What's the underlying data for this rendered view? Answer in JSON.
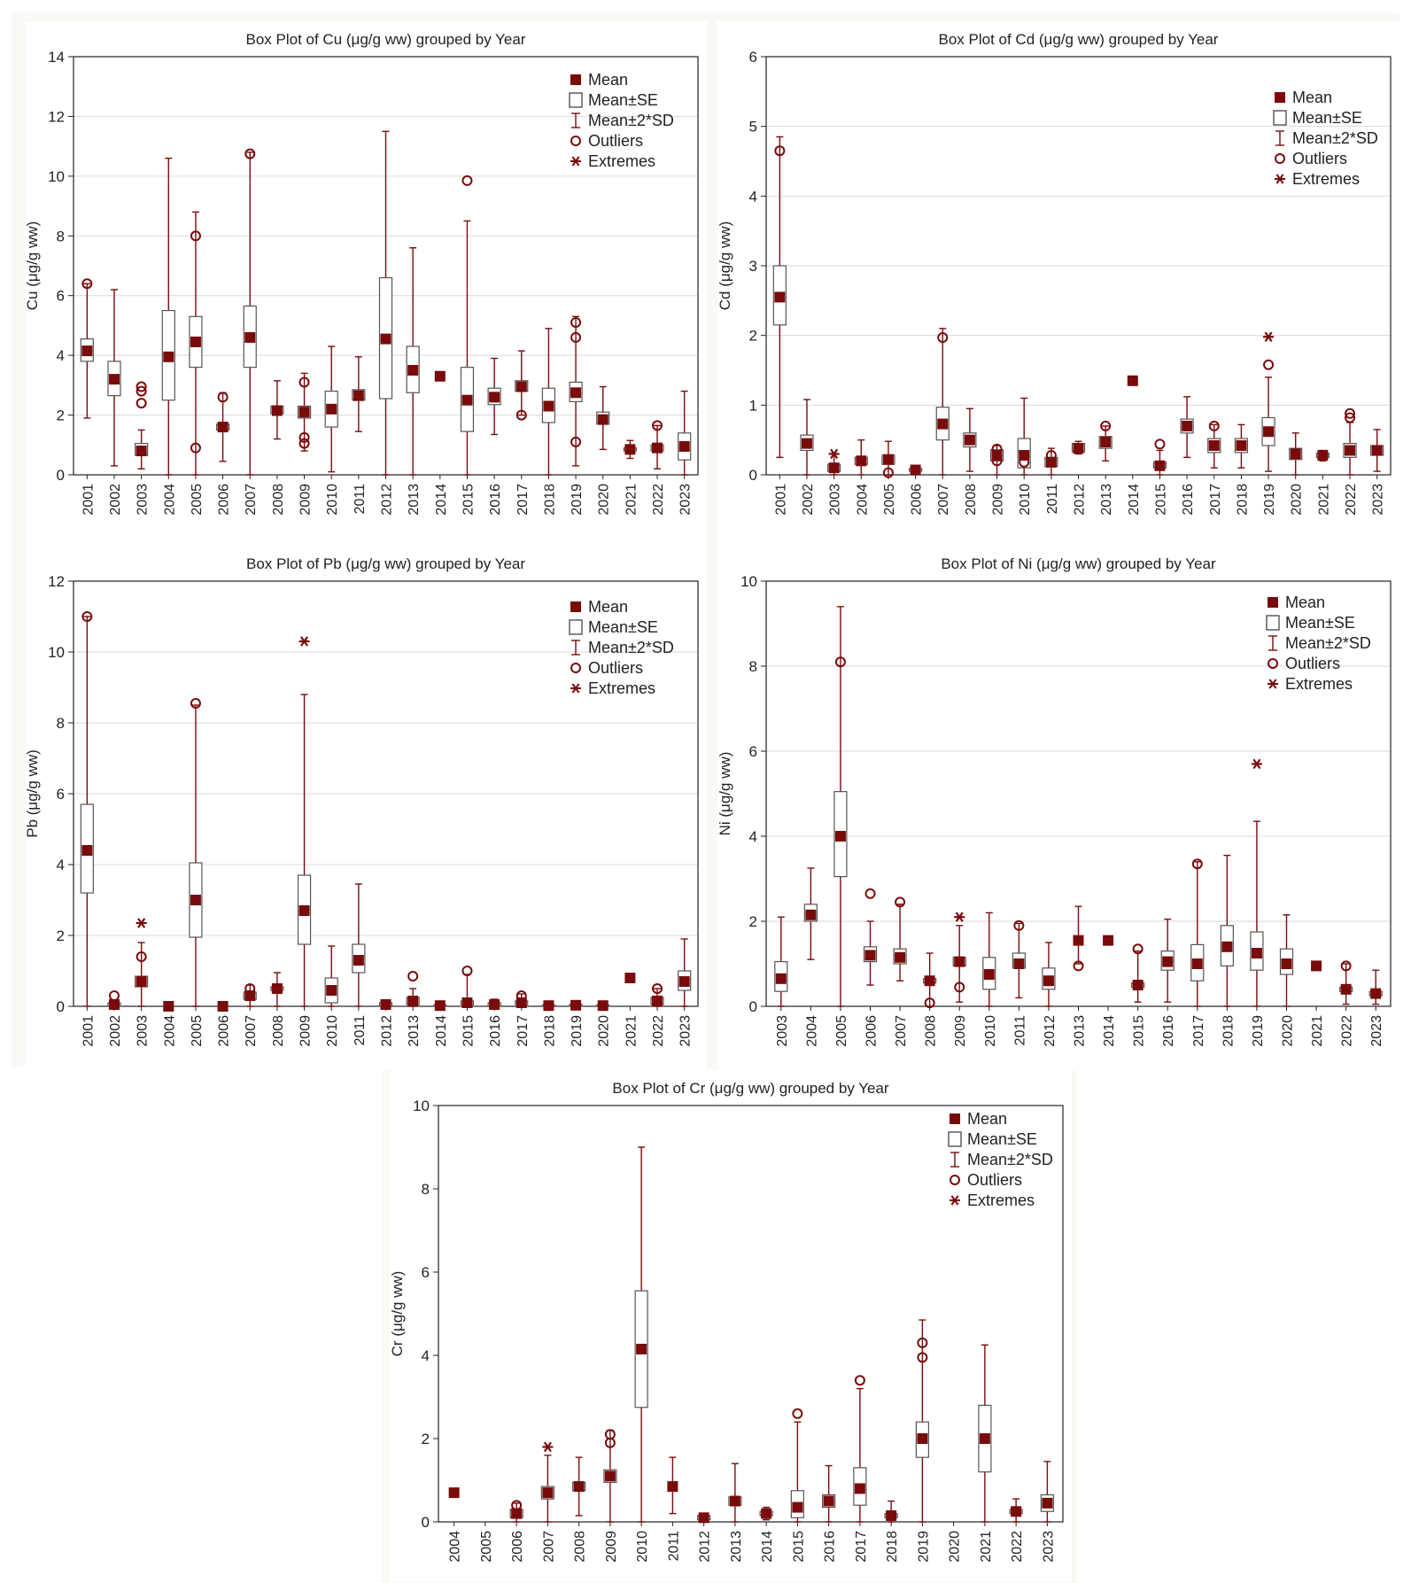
{
  "colors": {
    "mark": "#7a0b0b",
    "grid": "#d9d9d9",
    "axis": "#222222",
    "text": "#222222"
  },
  "legend_labels": [
    "Mean",
    "Mean±SE",
    "Mean±2*SD",
    "Outliers",
    "Extremes"
  ],
  "chart_data": [
    {
      "id": "cu",
      "type": "box",
      "title": "Box Plot of Cu (μg/g ww) grouped by  Year",
      "ylabel": "Cu (μg/g ww)",
      "ylim": [
        0,
        14
      ],
      "yticks": [
        0,
        2,
        4,
        6,
        8,
        10,
        12,
        14
      ],
      "grid": true,
      "legend": "top-right",
      "categories": [
        "2001",
        "2002",
        "2003",
        "2004",
        "2005",
        "2006",
        "2007",
        "2008",
        "2009",
        "2010",
        "2011",
        "2012",
        "2013",
        "2014",
        "2015",
        "2016",
        "2017",
        "2018",
        "2019",
        "2020",
        "2021",
        "2022",
        "2023"
      ],
      "mean": [
        4.15,
        3.2,
        0.8,
        3.95,
        4.45,
        1.6,
        4.6,
        2.15,
        2.1,
        2.2,
        2.65,
        4.55,
        3.5,
        3.3,
        2.5,
        2.6,
        2.95,
        2.3,
        2.75,
        1.85,
        0.85,
        0.9,
        0.95
      ],
      "se_low": [
        3.8,
        2.65,
        0.65,
        2.5,
        3.6,
        1.5,
        3.6,
        2.05,
        1.9,
        1.6,
        2.5,
        2.55,
        2.75,
        3.3,
        1.45,
        2.35,
        2.8,
        1.75,
        2.45,
        1.7,
        0.8,
        0.8,
        0.5
      ],
      "se_high": [
        4.55,
        3.8,
        1.05,
        5.5,
        5.3,
        1.7,
        5.65,
        2.3,
        2.3,
        2.8,
        2.85,
        6.6,
        4.3,
        3.3,
        3.6,
        2.9,
        3.15,
        2.9,
        3.1,
        2.1,
        0.9,
        1.0,
        1.4
      ],
      "sd_low": [
        1.9,
        0.3,
        0.2,
        0.0,
        0.0,
        0.45,
        0.0,
        1.2,
        0.8,
        0.1,
        1.45,
        0.0,
        0.0,
        3.3,
        0.0,
        1.35,
        2.0,
        0.0,
        0.3,
        0.85,
        0.55,
        0.2,
        0.0
      ],
      "sd_high": [
        6.4,
        6.2,
        1.5,
        10.6,
        8.8,
        2.75,
        10.8,
        3.15,
        3.4,
        4.3,
        3.95,
        11.5,
        7.6,
        3.3,
        8.5,
        3.9,
        4.15,
        4.9,
        5.3,
        2.95,
        1.15,
        1.65,
        2.8
      ],
      "outliers": [
        [
          6.4
        ],
        [],
        [
          2.95,
          2.8,
          2.4
        ],
        [],
        [
          8.0,
          0.9
        ],
        [
          2.6
        ],
        [
          10.75
        ],
        [],
        [
          3.1,
          1.25,
          1.05
        ],
        [],
        [],
        [],
        [],
        [],
        [
          9.85
        ],
        [],
        [
          2.0
        ],
        [],
        [
          5.1,
          4.6,
          1.1
        ],
        [],
        [],
        [
          1.65
        ],
        []
      ],
      "extremes": [
        [],
        [],
        [],
        [],
        [],
        [],
        [],
        [],
        [],
        [],
        [],
        [],
        [],
        [],
        [],
        [],
        [],
        [],
        [],
        [],
        [],
        [],
        []
      ]
    },
    {
      "id": "cd",
      "type": "box",
      "title": "Box Plot of Cd (μg/g ww) grouped by  Year",
      "ylabel": "Cd (μg/g ww)",
      "ylim": [
        0,
        6
      ],
      "yticks": [
        0,
        1,
        2,
        3,
        4,
        5,
        6
      ],
      "grid": true,
      "legend": "top-right",
      "categories": [
        "2001",
        "2002",
        "2003",
        "2004",
        "2005",
        "2006",
        "2007",
        "2008",
        "2009",
        "2010",
        "2011",
        "2012",
        "2013",
        "2014",
        "2015",
        "2016",
        "2017",
        "2018",
        "2019",
        "2020",
        "2021",
        "2022",
        "2023"
      ],
      "mean": [
        2.55,
        0.45,
        0.1,
        0.2,
        0.22,
        0.07,
        0.73,
        0.5,
        0.28,
        0.28,
        0.18,
        0.38,
        0.47,
        1.35,
        0.13,
        0.7,
        0.42,
        0.42,
        0.62,
        0.3,
        0.28,
        0.35,
        0.35
      ],
      "se_low": [
        2.15,
        0.35,
        0.05,
        0.15,
        0.15,
        0.05,
        0.5,
        0.4,
        0.2,
        0.1,
        0.12,
        0.33,
        0.38,
        1.35,
        0.1,
        0.6,
        0.32,
        0.32,
        0.42,
        0.22,
        0.25,
        0.25,
        0.28
      ],
      "se_high": [
        3.0,
        0.57,
        0.15,
        0.25,
        0.28,
        0.09,
        0.97,
        0.6,
        0.36,
        0.52,
        0.25,
        0.45,
        0.55,
        1.35,
        0.18,
        0.8,
        0.52,
        0.52,
        0.82,
        0.38,
        0.31,
        0.45,
        0.42
      ],
      "sd_low": [
        0.25,
        0.0,
        0.0,
        0.0,
        0.0,
        0.0,
        0.0,
        0.05,
        0.0,
        0.0,
        0.0,
        0.3,
        0.2,
        1.35,
        0.0,
        0.25,
        0.1,
        0.1,
        0.05,
        0.0,
        0.2,
        0.0,
        0.05
      ],
      "sd_high": [
        4.85,
        1.08,
        0.3,
        0.5,
        0.48,
        0.1,
        2.1,
        0.95,
        0.42,
        1.1,
        0.38,
        0.48,
        0.7,
        1.35,
        0.35,
        1.12,
        0.72,
        0.72,
        1.4,
        0.6,
        0.35,
        0.75,
        0.65
      ],
      "outliers": [
        [
          4.65
        ],
        [],
        [],
        [],
        [
          0.03
        ],
        [],
        [
          1.97
        ],
        [],
        [
          0.37,
          0.2
        ],
        [
          0.18
        ],
        [
          0.28
        ],
        [],
        [
          0.7
        ],
        [],
        [
          0.44
        ],
        [],
        [
          0.7
        ],
        [],
        [
          1.58
        ],
        [],
        [],
        [
          0.88,
          0.82
        ],
        []
      ],
      "extremes": [
        [],
        [],
        [
          0.3
        ],
        [],
        [],
        [],
        [],
        [],
        [],
        [],
        [],
        [],
        [],
        [],
        [],
        [],
        [],
        [],
        [
          1.98
        ],
        [],
        [],
        [],
        []
      ]
    },
    {
      "id": "pb",
      "type": "box",
      "title": "Box Plot of Pb (μg/g ww) grouped by  Year",
      "ylabel": "Pb (μg/g ww)",
      "ylim": [
        0,
        12
      ],
      "yticks": [
        0,
        2,
        4,
        6,
        8,
        10,
        12
      ],
      "grid": true,
      "legend": "top-right",
      "categories": [
        "2001",
        "2002",
        "2003",
        "2004",
        "2005",
        "2006",
        "2007",
        "2008",
        "2009",
        "2010",
        "2011",
        "2012",
        "2013",
        "2014",
        "2015",
        "2016",
        "2017",
        "2018",
        "2019",
        "2020",
        "2021",
        "2022",
        "2023"
      ],
      "mean": [
        4.4,
        0.05,
        0.7,
        0.0,
        3.0,
        0.0,
        0.3,
        0.5,
        2.7,
        0.45,
        1.3,
        0.05,
        0.15,
        0.02,
        0.1,
        0.05,
        0.1,
        0.02,
        0.03,
        0.02,
        0.8,
        0.15,
        0.7
      ],
      "se_low": [
        3.2,
        0.0,
        0.55,
        0.0,
        1.95,
        0.0,
        0.2,
        0.45,
        1.75,
        0.1,
        0.95,
        0.0,
        0.05,
        0.0,
        0.05,
        0.0,
        0.05,
        0.0,
        0.0,
        0.0,
        0.8,
        0.05,
        0.45
      ],
      "se_high": [
        5.7,
        0.1,
        0.85,
        0.0,
        4.05,
        0.0,
        0.4,
        0.55,
        3.7,
        0.8,
        1.75,
        0.1,
        0.25,
        0.04,
        0.15,
        0.1,
        0.15,
        0.04,
        0.06,
        0.04,
        0.8,
        0.25,
        1.0
      ],
      "sd_low": [
        0.0,
        0.0,
        0.0,
        0.0,
        0.0,
        0.0,
        0.0,
        0.0,
        0.0,
        0.0,
        0.0,
        0.0,
        0.0,
        0.0,
        0.0,
        0.0,
        0.0,
        0.0,
        0.0,
        0.0,
        0.8,
        0.0,
        0.0
      ],
      "sd_high": [
        11.0,
        0.15,
        1.8,
        0.0,
        8.5,
        0.05,
        0.6,
        0.95,
        8.8,
        1.7,
        3.45,
        0.15,
        0.5,
        0.1,
        0.9,
        0.2,
        0.35,
        0.08,
        0.12,
        0.08,
        0.8,
        0.5,
        1.9
      ],
      "outliers": [
        [
          11.0
        ],
        [
          0.3
        ],
        [
          1.4
        ],
        [],
        [
          8.55
        ],
        [],
        [
          0.5
        ],
        [],
        [],
        [],
        [],
        [],
        [
          0.85
        ],
        [],
        [
          1.0
        ],
        [],
        [
          0.3
        ],
        [],
        [],
        [],
        [],
        [
          0.5
        ],
        []
      ],
      "extremes": [
        [],
        [],
        [
          2.35
        ],
        [],
        [],
        [],
        [],
        [],
        [
          10.3
        ],
        [],
        [],
        [],
        [],
        [],
        [],
        [],
        [],
        [],
        [],
        [],
        [],
        [],
        []
      ]
    },
    {
      "id": "ni",
      "type": "box",
      "title": "Box Plot of Ni (μg/g ww) grouped by  Year",
      "ylabel": "Ni (μg/g ww)",
      "ylim": [
        0,
        10
      ],
      "yticks": [
        0,
        2,
        4,
        6,
        8,
        10
      ],
      "grid": true,
      "legend": "top-right",
      "categories": [
        "2003",
        "2004",
        "2005",
        "2006",
        "2007",
        "2008",
        "2009",
        "2010",
        "2011",
        "2012",
        "2013",
        "2014",
        "2015",
        "2016",
        "2017",
        "2018",
        "2019",
        "2020",
        "2021",
        "2022",
        "2023"
      ],
      "mean": [
        0.65,
        2.15,
        4.0,
        1.2,
        1.15,
        0.6,
        1.05,
        0.75,
        1.0,
        0.6,
        1.55,
        1.55,
        0.5,
        1.05,
        1.0,
        1.4,
        1.25,
        1.0,
        0.95,
        0.4,
        0.3
      ],
      "se_low": [
        0.35,
        2.0,
        3.05,
        1.05,
        1.0,
        0.55,
        0.95,
        0.4,
        0.9,
        0.4,
        1.55,
        1.55,
        0.45,
        0.85,
        0.6,
        0.95,
        0.85,
        0.75,
        0.95,
        0.35,
        0.25
      ],
      "se_high": [
        1.05,
        2.4,
        5.05,
        1.4,
        1.35,
        0.65,
        1.15,
        1.15,
        1.25,
        0.9,
        1.55,
        1.55,
        0.55,
        1.3,
        1.45,
        1.9,
        1.75,
        1.35,
        0.95,
        0.45,
        0.35
      ],
      "sd_low": [
        0.0,
        1.1,
        0.0,
        0.5,
        0.6,
        0.0,
        0.1,
        0.0,
        0.2,
        0.0,
        1.0,
        1.55,
        0.1,
        0.1,
        0.0,
        0.0,
        0.0,
        0.0,
        0.95,
        0.05,
        0.05
      ],
      "sd_high": [
        2.1,
        3.25,
        9.4,
        2.0,
        2.4,
        1.25,
        1.9,
        2.2,
        1.95,
        1.5,
        2.35,
        1.55,
        1.3,
        2.05,
        3.4,
        3.55,
        4.35,
        2.15,
        0.95,
        1.0,
        0.85
      ],
      "outliers": [
        [],
        [],
        [
          8.1
        ],
        [
          2.65
        ],
        [
          2.45
        ],
        [
          0.08
        ],
        [
          0.45
        ],
        [],
        [
          1.9
        ],
        [],
        [
          0.95
        ],
        [],
        [
          1.35
        ],
        [],
        [
          3.35
        ],
        [],
        [],
        [],
        [],
        [
          0.95
        ],
        []
      ],
      "extremes": [
        [],
        [],
        [],
        [],
        [],
        [],
        [
          2.1
        ],
        [],
        [],
        [],
        [],
        [],
        [],
        [],
        [],
        [],
        [
          5.7
        ],
        [],
        [],
        [],
        []
      ]
    },
    {
      "id": "cr",
      "type": "box",
      "title": "Box Plot of Cr (μg/g ww) grouped by  Year",
      "ylabel": "Cr (μg/g ww)",
      "ylim": [
        0,
        10
      ],
      "yticks": [
        0,
        2,
        4,
        6,
        8,
        10
      ],
      "grid": false,
      "legend": "top-right",
      "categories": [
        "2004",
        "2005",
        "2006",
        "2007",
        "2008",
        "2009",
        "2010",
        "2011",
        "2012",
        "2013",
        "2014",
        "2015",
        "2016",
        "2017",
        "2018",
        "2019",
        "2020",
        "2021",
        "2022",
        "2023"
      ],
      "mean": [
        0.7,
        null,
        0.2,
        0.7,
        0.85,
        1.1,
        4.15,
        0.85,
        0.1,
        0.5,
        0.2,
        0.35,
        0.5,
        0.8,
        0.15,
        2.0,
        null,
        2.0,
        0.25,
        0.45
      ],
      "se_low": [
        0.7,
        null,
        0.1,
        0.55,
        0.75,
        0.95,
        2.75,
        0.85,
        0.05,
        0.4,
        0.15,
        0.1,
        0.35,
        0.4,
        0.1,
        1.55,
        null,
        1.2,
        0.2,
        0.25
      ],
      "se_high": [
        0.7,
        null,
        0.3,
        0.85,
        0.95,
        1.25,
        5.55,
        0.85,
        0.15,
        0.6,
        0.25,
        0.75,
        0.65,
        1.3,
        0.2,
        2.4,
        null,
        2.8,
        0.3,
        0.65
      ],
      "sd_low": [
        0.7,
        null,
        0.0,
        0.0,
        0.15,
        0.0,
        0.0,
        0.2,
        0.0,
        0.0,
        0.05,
        0.0,
        0.0,
        0.0,
        0.0,
        0.0,
        null,
        0.0,
        0.0,
        0.0
      ],
      "sd_high": [
        0.7,
        null,
        0.45,
        1.6,
        1.55,
        2.2,
        9.0,
        1.55,
        0.2,
        1.4,
        0.35,
        2.4,
        1.35,
        3.2,
        0.5,
        4.85,
        null,
        4.25,
        0.55,
        1.45
      ],
      "outliers": [
        [],
        [],
        [
          0.4
        ],
        [],
        [],
        [
          2.1,
          1.9
        ],
        [],
        [],
        [],
        [],
        [],
        [
          2.6
        ],
        [],
        [
          3.4
        ],
        [],
        [
          4.3,
          3.95
        ],
        [],
        [],
        [],
        []
      ],
      "extremes": [
        [],
        [],
        [],
        [
          1.8
        ],
        [],
        [],
        [],
        [],
        [],
        [],
        [],
        [],
        [],
        [],
        [],
        [],
        [],
        [],
        [],
        []
      ]
    }
  ]
}
